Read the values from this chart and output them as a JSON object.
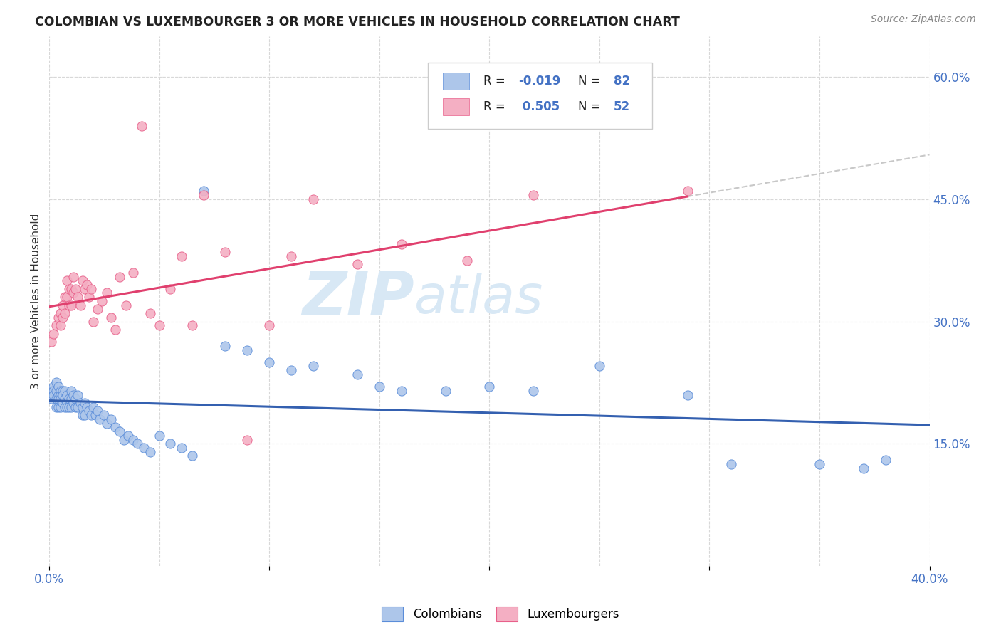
{
  "title": "COLOMBIAN VS LUXEMBOURGER 3 OR MORE VEHICLES IN HOUSEHOLD CORRELATION CHART",
  "source": "Source: ZipAtlas.com",
  "ylabel": "3 or more Vehicles in Household",
  "xlim": [
    0.0,
    0.4
  ],
  "ylim": [
    0.0,
    0.65
  ],
  "ytick_positions": [
    0.15,
    0.3,
    0.45,
    0.6
  ],
  "ytick_labels": [
    "15.0%",
    "30.0%",
    "45.0%",
    "60.0%"
  ],
  "xtick_positions": [
    0.0,
    0.1,
    0.2,
    0.3,
    0.4
  ],
  "xtick_labels": [
    "0.0%",
    "",
    "",
    "",
    "40.0%"
  ],
  "blue_R": -0.019,
  "blue_N": 82,
  "pink_R": 0.505,
  "pink_N": 52,
  "blue_fill": "#adc6ea",
  "pink_fill": "#f4afc3",
  "blue_edge": "#5b8dd9",
  "pink_edge": "#e8608a",
  "blue_line": "#3460b0",
  "pink_line": "#e0406e",
  "dash_color": "#c8c8c8",
  "grid_color": "#d8d8d8",
  "watermark_color": "#d8e8f5",
  "title_color": "#222222",
  "source_color": "#888888",
  "axis_label_color": "#4472c4",
  "ylabel_color": "#333333",
  "legend_edge": "#cccccc",
  "legend_text_black": "#222222",
  "legend_text_blue": "#4472c4",
  "colombians_x": [
    0.001,
    0.001,
    0.002,
    0.002,
    0.002,
    0.003,
    0.003,
    0.003,
    0.003,
    0.004,
    0.004,
    0.004,
    0.004,
    0.005,
    0.005,
    0.005,
    0.005,
    0.006,
    0.006,
    0.006,
    0.007,
    0.007,
    0.007,
    0.008,
    0.008,
    0.008,
    0.009,
    0.009,
    0.01,
    0.01,
    0.01,
    0.011,
    0.011,
    0.012,
    0.012,
    0.013,
    0.013,
    0.014,
    0.015,
    0.015,
    0.016,
    0.016,
    0.017,
    0.018,
    0.019,
    0.02,
    0.021,
    0.022,
    0.023,
    0.025,
    0.026,
    0.028,
    0.03,
    0.032,
    0.034,
    0.036,
    0.038,
    0.04,
    0.043,
    0.046,
    0.05,
    0.055,
    0.06,
    0.065,
    0.07,
    0.08,
    0.09,
    0.1,
    0.11,
    0.12,
    0.14,
    0.15,
    0.16,
    0.18,
    0.2,
    0.22,
    0.25,
    0.29,
    0.31,
    0.35,
    0.37,
    0.38
  ],
  "colombians_y": [
    0.215,
    0.205,
    0.22,
    0.215,
    0.21,
    0.225,
    0.215,
    0.205,
    0.195,
    0.22,
    0.21,
    0.205,
    0.195,
    0.215,
    0.21,
    0.205,
    0.195,
    0.215,
    0.21,
    0.2,
    0.215,
    0.205,
    0.195,
    0.21,
    0.2,
    0.195,
    0.205,
    0.195,
    0.215,
    0.205,
    0.195,
    0.21,
    0.2,
    0.205,
    0.195,
    0.21,
    0.195,
    0.2,
    0.195,
    0.185,
    0.2,
    0.185,
    0.195,
    0.19,
    0.185,
    0.195,
    0.185,
    0.19,
    0.18,
    0.185,
    0.175,
    0.18,
    0.17,
    0.165,
    0.155,
    0.16,
    0.155,
    0.15,
    0.145,
    0.14,
    0.16,
    0.15,
    0.145,
    0.135,
    0.46,
    0.27,
    0.265,
    0.25,
    0.24,
    0.245,
    0.235,
    0.22,
    0.215,
    0.215,
    0.22,
    0.215,
    0.245,
    0.21,
    0.125,
    0.125,
    0.12,
    0.13
  ],
  "luxembourgers_x": [
    0.001,
    0.002,
    0.003,
    0.004,
    0.005,
    0.005,
    0.006,
    0.006,
    0.007,
    0.007,
    0.008,
    0.008,
    0.009,
    0.009,
    0.01,
    0.01,
    0.011,
    0.011,
    0.012,
    0.013,
    0.014,
    0.015,
    0.016,
    0.017,
    0.018,
    0.019,
    0.02,
    0.022,
    0.024,
    0.026,
    0.028,
    0.03,
    0.032,
    0.035,
    0.038,
    0.042,
    0.046,
    0.05,
    0.055,
    0.06,
    0.065,
    0.07,
    0.08,
    0.09,
    0.1,
    0.11,
    0.12,
    0.14,
    0.16,
    0.19,
    0.22,
    0.29
  ],
  "luxembourgers_y": [
    0.275,
    0.285,
    0.295,
    0.305,
    0.31,
    0.295,
    0.32,
    0.305,
    0.33,
    0.31,
    0.35,
    0.33,
    0.34,
    0.32,
    0.34,
    0.32,
    0.355,
    0.335,
    0.34,
    0.33,
    0.32,
    0.35,
    0.34,
    0.345,
    0.33,
    0.34,
    0.3,
    0.315,
    0.325,
    0.335,
    0.305,
    0.29,
    0.355,
    0.32,
    0.36,
    0.54,
    0.31,
    0.295,
    0.34,
    0.38,
    0.295,
    0.455,
    0.385,
    0.155,
    0.295,
    0.38,
    0.45,
    0.37,
    0.395,
    0.375,
    0.455,
    0.46
  ]
}
